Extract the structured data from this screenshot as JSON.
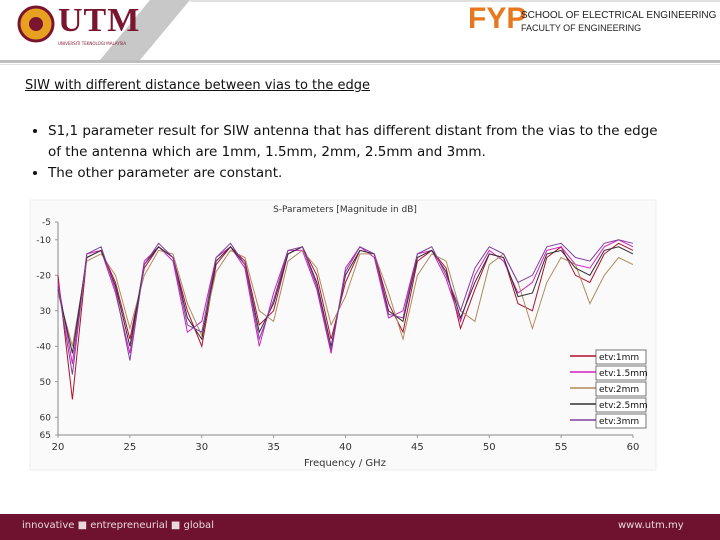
{
  "header": {
    "logo_text": "UTM",
    "logo_subtext": "UNIVERSITI TEKNOLOGI MALAYSIA",
    "fyp": "FYP",
    "school": "SCHOOL OF ELECTRICAL ENGINEERING",
    "faculty": "FACULTY OF ENGINEERING"
  },
  "heading": "SIW with different distance between vias to the edge",
  "bullets": [
    "S1,1 parameter result for SIW antenna that has different distant from the vias to the edge of the antenna which are 1mm, 1.5mm, 2mm, 2.5mm and 3mm.",
    "The other parameter are constant."
  ],
  "chart_data": {
    "type": "line",
    "title": "S-Parameters [Magnitude in dB]",
    "x_label": "Frequency / GHz",
    "x": [
      20,
      21,
      22,
      23,
      24,
      25,
      26,
      27,
      28,
      29,
      30,
      31,
      32,
      33,
      34,
      35,
      36,
      37,
      38,
      39,
      40,
      41,
      42,
      43,
      44,
      45,
      46,
      47,
      48,
      49,
      50,
      51,
      52,
      53,
      54,
      55,
      56,
      57,
      58,
      59,
      60
    ],
    "xlim": [
      20,
      60
    ],
    "xticks": [
      20,
      25,
      30,
      35,
      40,
      45,
      50,
      55,
      60
    ],
    "ylim": [
      -65,
      -5
    ],
    "yticks": [
      -5,
      -10,
      -20,
      {
        "value": -30,
        "label": "30"
      },
      -40,
      {
        "value": -50,
        "label": "50"
      },
      {
        "value": -60,
        "label": "60"
      },
      {
        "value": -65,
        "label": "65"
      }
    ],
    "grid": false,
    "legend": "lower right",
    "series": [
      {
        "name": "etv:1mm",
        "color": "#b0102a",
        "values": [
          -20,
          -55,
          -15,
          -13,
          -22,
          -38,
          -18,
          -12,
          -15,
          -30,
          -40,
          -17,
          -12,
          -16,
          -34,
          -30,
          -14,
          -12,
          -20,
          -38,
          -22,
          -13,
          -14,
          -28,
          -36,
          -16,
          -13,
          -18,
          -35,
          -24,
          -14,
          -15,
          -28,
          -30,
          -15,
          -12,
          -20,
          -22,
          -14,
          -11,
          -13
        ]
      },
      {
        "name": "etv:1.5mm",
        "color": "#d020c0",
        "values": [
          -22,
          -45,
          -14,
          -13,
          -25,
          -42,
          -16,
          -12,
          -16,
          -36,
          -33,
          -15,
          -12,
          -18,
          -40,
          -25,
          -13,
          -13,
          -24,
          -42,
          -18,
          -12,
          -15,
          -32,
          -30,
          -14,
          -13,
          -21,
          -33,
          -20,
          -13,
          -16,
          -25,
          -22,
          -13,
          -12,
          -17,
          -18,
          -12,
          -10,
          -12
        ]
      },
      {
        "name": "etv:2mm",
        "color": "#b08a60",
        "values": [
          -25,
          -40,
          -16,
          -14,
          -20,
          -35,
          -20,
          -13,
          -14,
          -28,
          -37,
          -19,
          -13,
          -15,
          -30,
          -33,
          -16,
          -13,
          -18,
          -34,
          -26,
          -14,
          -14,
          -25,
          -38,
          -20,
          -14,
          -16,
          -30,
          -33,
          -17,
          -14,
          -22,
          -35,
          -22,
          -15,
          -17,
          -28,
          -20,
          -15,
          -17
        ]
      },
      {
        "name": "etv:2.5mm",
        "color": "#303030",
        "values": [
          -24,
          -42,
          -15,
          -13,
          -23,
          -40,
          -17,
          -12,
          -15,
          -32,
          -38,
          -16,
          -12,
          -17,
          -36,
          -28,
          -14,
          -12,
          -22,
          -40,
          -20,
          -13,
          -14,
          -30,
          -33,
          -15,
          -13,
          -19,
          -32,
          -22,
          -14,
          -15,
          -26,
          -25,
          -14,
          -13,
          -18,
          -20,
          -13,
          -12,
          -14
        ]
      },
      {
        "name": "etv:3mm",
        "color": "#8040a0",
        "values": [
          -23,
          -48,
          -14,
          -12,
          -24,
          -44,
          -17,
          -11,
          -15,
          -34,
          -36,
          -15,
          -11,
          -17,
          -38,
          -27,
          -13,
          -12,
          -23,
          -41,
          -19,
          -12,
          -14,
          -31,
          -32,
          -14,
          -12,
          -20,
          -30,
          -18,
          -12,
          -14,
          -22,
          -20,
          -12,
          -11,
          -15,
          -16,
          -11,
          -10,
          -11
        ]
      }
    ]
  },
  "footer": {
    "tagline": "innovative ■ entrepreneurial ■ global",
    "url": "www.utm.my"
  }
}
